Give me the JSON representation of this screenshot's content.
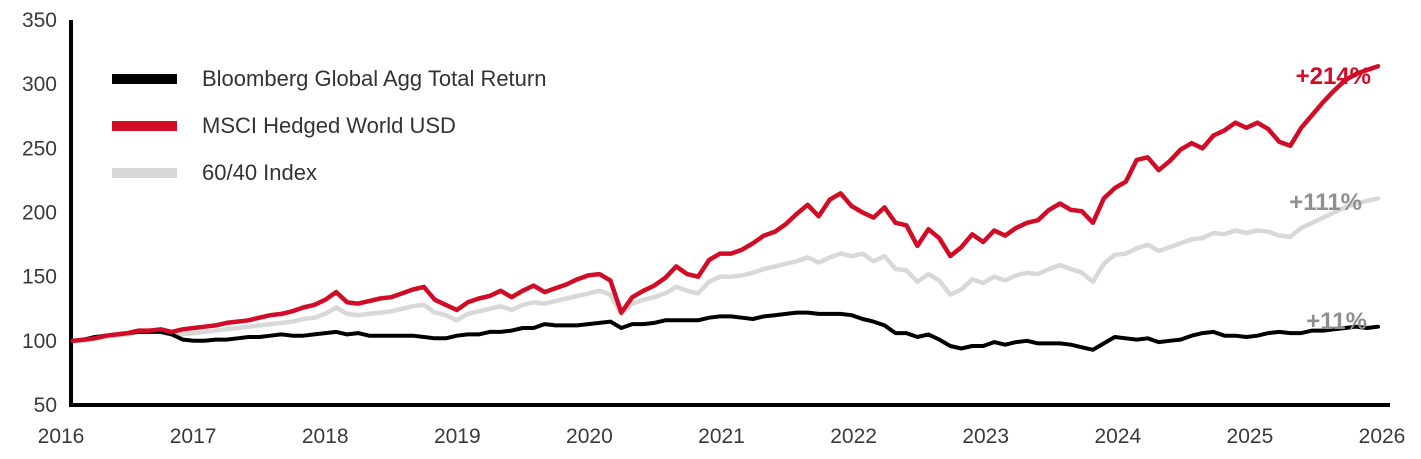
{
  "chart_data": {
    "type": "line",
    "grid": false,
    "legend_position": "top-left",
    "axis_color": "#000000",
    "tick_label_color": "#3a3a3a",
    "x_ticks": [
      "2016",
      "2017",
      "2018",
      "2019",
      "2020",
      "2021",
      "2022",
      "2023",
      "2024",
      "2025",
      "2026"
    ],
    "y_ticks": [
      50,
      100,
      150,
      200,
      250,
      300,
      350
    ],
    "ylim": [
      50,
      350
    ],
    "xlim_years": [
      2016,
      2026
    ],
    "start_year": 2016,
    "points_per_year": 12,
    "series": [
      {
        "name": "Bloomberg Global Agg Total Return",
        "color": "#000000",
        "end_label": "+11%",
        "end_label_color": "#8f8f8f",
        "values": [
          100,
          101,
          103,
          104,
          105,
          106,
          107,
          107,
          107,
          105,
          101,
          100,
          100,
          101,
          101,
          102,
          103,
          103,
          104,
          105,
          104,
          104,
          105,
          106,
          107,
          105,
          106,
          104,
          104,
          104,
          104,
          104,
          103,
          102,
          102,
          104,
          105,
          105,
          107,
          107,
          108,
          110,
          110,
          113,
          112,
          112,
          112,
          113,
          114,
          115,
          110,
          113,
          113,
          114,
          116,
          116,
          116,
          116,
          118,
          119,
          119,
          118,
          117,
          119,
          120,
          121,
          122,
          122,
          121,
          121,
          121,
          120,
          117,
          115,
          112,
          106,
          106,
          103,
          105,
          101,
          96,
          94,
          96,
          96,
          99,
          97,
          99,
          100,
          98,
          98,
          98,
          97,
          95,
          93,
          98,
          103,
          102,
          101,
          102,
          99,
          100,
          101,
          104,
          106,
          107,
          104,
          104,
          103,
          104,
          106,
          107,
          106,
          106,
          108,
          108,
          109,
          110,
          111,
          110,
          111
        ]
      },
      {
        "name": "MSCI Hedged World USD",
        "color": "#d10c26",
        "end_label": "+214%",
        "end_label_color": "#d10c26",
        "values": [
          100,
          101,
          102,
          104,
          105,
          106,
          108,
          108,
          109,
          107,
          109,
          110,
          111,
          112,
          114,
          115,
          116,
          118,
          120,
          121,
          123,
          126,
          128,
          132,
          138,
          130,
          129,
          131,
          133,
          134,
          137,
          140,
          142,
          132,
          128,
          124,
          130,
          133,
          135,
          139,
          134,
          139,
          143,
          138,
          141,
          144,
          148,
          151,
          152,
          147,
          122,
          134,
          139,
          143,
          149,
          158,
          152,
          150,
          163,
          168,
          168,
          171,
          176,
          182,
          185,
          191,
          199,
          206,
          197,
          210,
          215,
          205,
          200,
          196,
          204,
          192,
          190,
          174,
          187,
          180,
          166,
          173,
          183,
          177,
          186,
          182,
          188,
          192,
          194,
          202,
          207,
          202,
          201,
          192,
          211,
          219,
          224,
          241,
          243,
          233,
          240,
          249,
          254,
          250,
          260,
          264,
          270,
          266,
          270,
          265,
          255,
          252,
          266,
          276,
          286,
          295,
          303,
          308,
          311,
          314
        ]
      },
      {
        "name": "60/40 Index",
        "color": "#d8d8d8",
        "end_label": "+111%",
        "end_label_color": "#8f8f8f",
        "values": [
          100,
          100,
          102,
          103,
          104,
          105,
          107,
          108,
          108,
          106,
          105,
          106,
          107,
          108,
          109,
          110,
          111,
          112,
          113,
          114,
          115,
          117,
          118,
          121,
          126,
          121,
          120,
          121,
          122,
          123,
          125,
          127,
          128,
          122,
          120,
          116,
          121,
          123,
          125,
          127,
          124,
          128,
          130,
          129,
          131,
          133,
          135,
          137,
          139,
          136,
          121,
          129,
          132,
          134,
          137,
          142,
          139,
          137,
          146,
          150,
          150,
          151,
          153,
          156,
          158,
          160,
          162,
          165,
          161,
          165,
          168,
          166,
          168,
          162,
          166,
          156,
          155,
          146,
          152,
          147,
          136,
          140,
          148,
          145,
          150,
          147,
          151,
          153,
          152,
          156,
          159,
          156,
          153,
          146,
          160,
          167,
          168,
          172,
          175,
          170,
          173,
          176,
          179,
          180,
          184,
          183,
          186,
          184,
          186,
          185,
          182,
          181,
          188,
          192,
          196,
          200,
          204,
          207,
          209,
          211
        ]
      }
    ]
  }
}
